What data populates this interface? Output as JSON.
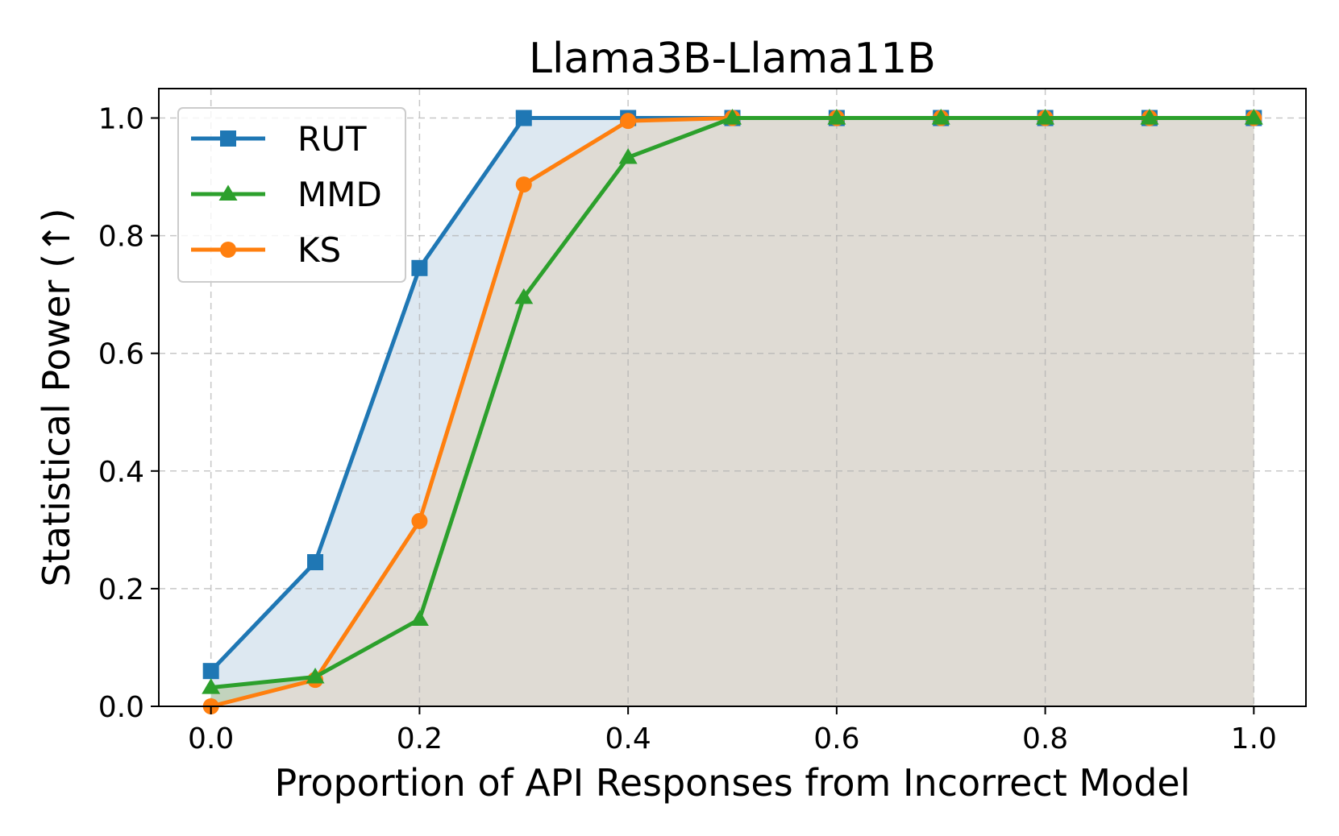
{
  "chart_data": {
    "type": "line",
    "title": "Llama3B-Llama11B",
    "xlabel": "Proportion of API Responses from Incorrect Model",
    "ylabel": "Statistical Power (↑)",
    "x": [
      0.0,
      0.1,
      0.2,
      0.3,
      0.4,
      0.5,
      0.6,
      0.7,
      0.8,
      0.9,
      1.0
    ],
    "xlim": [
      -0.05,
      1.05
    ],
    "ylim": [
      0.0,
      1.05
    ],
    "xticks": [
      "0.0",
      "0.2",
      "0.4",
      "0.6",
      "0.8",
      "1.0"
    ],
    "yticks": [
      "0.0",
      "0.2",
      "0.4",
      "0.6",
      "0.8",
      "1.0"
    ],
    "grid": true,
    "legend_position": "upper-left",
    "series": [
      {
        "name": "RUT",
        "marker": "square",
        "color": "#1f77b4",
        "fill_color": "#dde8f1",
        "values": [
          0.06,
          0.245,
          0.745,
          1.0,
          1.0,
          1.0,
          1.0,
          1.0,
          1.0,
          1.0,
          1.0
        ]
      },
      {
        "name": "MMD",
        "marker": "triangle",
        "color": "#2ca02c",
        "fill_color": "#c2d3bd",
        "values": [
          0.032,
          0.05,
          0.148,
          0.695,
          0.933,
          1.0,
          1.0,
          1.0,
          1.0,
          1.0,
          1.0
        ]
      },
      {
        "name": "KS",
        "marker": "circle",
        "color": "#ff7f0e",
        "fill_color": "#dfdbd4",
        "values": [
          0.0,
          0.045,
          0.315,
          0.887,
          0.995,
          1.0,
          1.0,
          1.0,
          1.0,
          1.0,
          1.0
        ]
      }
    ]
  }
}
